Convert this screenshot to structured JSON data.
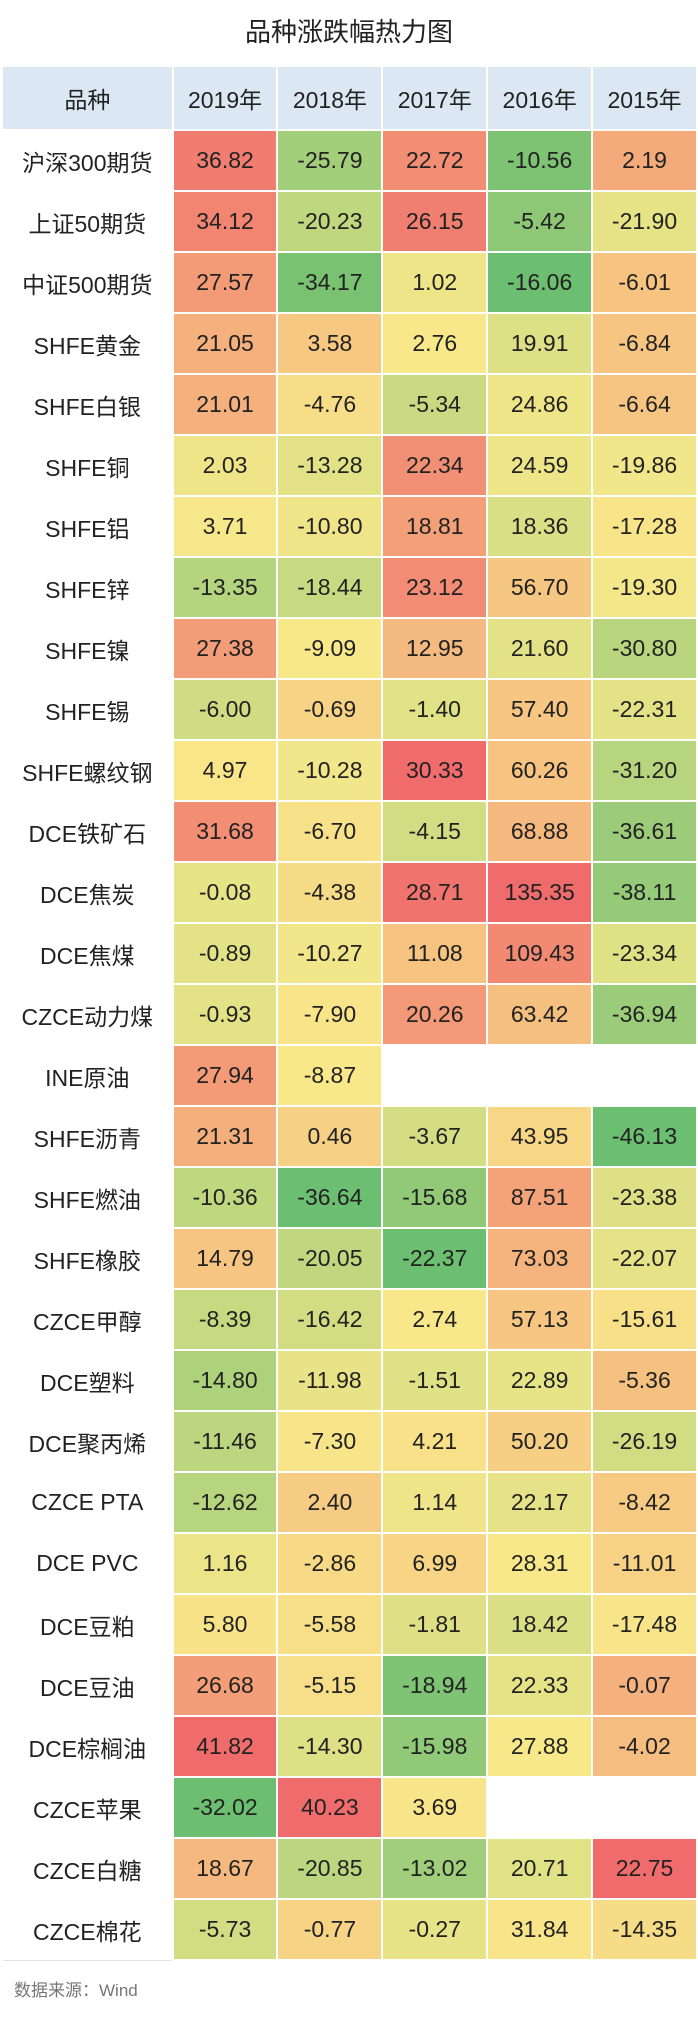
{
  "title": "品种涨跌幅热力图",
  "table": {
    "header": [
      "品种",
      "2019年",
      "2018年",
      "2017年",
      "2016年",
      "2015年"
    ],
    "rows": [
      [
        "沪深300期货",
        "36.82",
        "-25.79",
        "22.72",
        "-10.56",
        "2.19"
      ],
      [
        "上证50期货",
        "34.12",
        "-20.23",
        "26.15",
        "-5.42",
        "-21.90"
      ],
      [
        "中证500期货",
        "27.57",
        "-34.17",
        "1.02",
        "-16.06",
        "-6.01"
      ],
      [
        "SHFE黄金",
        "21.05",
        "3.58",
        "2.76",
        "19.91",
        "-6.84"
      ],
      [
        "SHFE白银",
        "21.01",
        "-4.76",
        "-5.34",
        "24.86",
        "-6.64"
      ],
      [
        "SHFE铜",
        "2.03",
        "-13.28",
        "22.34",
        "24.59",
        "-19.86"
      ],
      [
        "SHFE铝",
        "3.71",
        "-10.80",
        "18.81",
        "18.36",
        "-17.28"
      ],
      [
        "SHFE锌",
        "-13.35",
        "-18.44",
        "23.12",
        "56.70",
        "-19.30"
      ],
      [
        "SHFE镍",
        "27.38",
        "-9.09",
        "12.95",
        "21.60",
        "-30.80"
      ],
      [
        "SHFE锡",
        "-6.00",
        "-0.69",
        "-1.40",
        "57.40",
        "-22.31"
      ],
      [
        "SHFE螺纹钢",
        "4.97",
        "-10.28",
        "30.33",
        "60.26",
        "-31.20"
      ],
      [
        "DCE铁矿石",
        "31.68",
        "-6.70",
        "-4.15",
        "68.88",
        "-36.61"
      ],
      [
        "DCE焦炭",
        "-0.08",
        "-4.38",
        "28.71",
        "135.35",
        "-38.11"
      ],
      [
        "DCE焦煤",
        "-0.89",
        "-10.27",
        "11.08",
        "109.43",
        "-23.34"
      ],
      [
        "CZCE动力煤",
        "-0.93",
        "-7.90",
        "20.26",
        "63.42",
        "-36.94"
      ],
      [
        "INE原油",
        "27.94",
        "-8.87",
        null,
        null,
        null
      ],
      [
        "SHFE沥青",
        "21.31",
        "0.46",
        "-3.67",
        "43.95",
        "-46.13"
      ],
      [
        "SHFE燃油",
        "-10.36",
        "-36.64",
        "-15.68",
        "87.51",
        "-23.38"
      ],
      [
        "SHFE橡胶",
        "14.79",
        "-20.05",
        "-22.37",
        "73.03",
        "-22.07"
      ],
      [
        "CZCE甲醇",
        "-8.39",
        "-16.42",
        "2.74",
        "57.13",
        "-15.61"
      ],
      [
        "DCE塑料",
        "-14.80",
        "-11.98",
        "-1.51",
        "22.89",
        "-5.36"
      ],
      [
        "DCE聚丙烯",
        "-11.46",
        "-7.30",
        "4.21",
        "50.20",
        "-26.19"
      ],
      [
        "CZCE PTA",
        "-12.62",
        "2.40",
        "1.14",
        "22.17",
        "-8.42"
      ],
      [
        "DCE PVC",
        "1.16",
        "-2.86",
        "6.99",
        "28.31",
        "-11.01"
      ],
      [
        "DCE豆粕",
        "5.80",
        "-5.58",
        "-1.81",
        "18.42",
        "-17.48"
      ],
      [
        "DCE豆油",
        "26.68",
        "-5.15",
        "-18.94",
        "22.33",
        "-0.07"
      ],
      [
        "DCE棕榈油",
        "41.82",
        "-14.30",
        "-15.98",
        "27.88",
        "-4.02"
      ],
      [
        "CZCE苹果",
        "-32.02",
        "40.23",
        "3.69",
        null,
        null
      ],
      [
        "CZCE白糖",
        "18.67",
        "-20.85",
        "-13.02",
        "20.71",
        "22.75"
      ],
      [
        "CZCE棉花",
        "-5.73",
        "-0.77",
        "-0.27",
        "31.84",
        "-14.35"
      ]
    ]
  },
  "footer": "数据来源：Wind"
}
